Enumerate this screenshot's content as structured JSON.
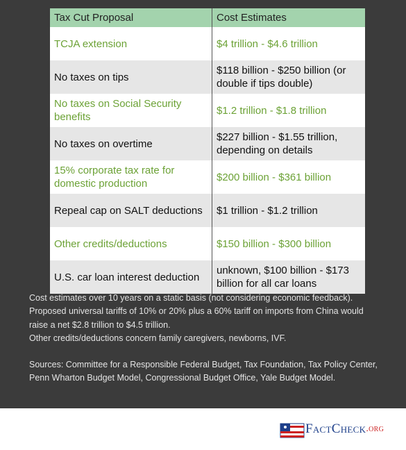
{
  "table": {
    "header": [
      "Tax Cut Proposal",
      "Cost Estimates"
    ],
    "rows": [
      [
        "TCJA extension",
        "$4 trillion - $4.6 trillion"
      ],
      [
        "No taxes on tips",
        "$118 billion - $250 billion (or double if tips double)"
      ],
      [
        "No taxes on Social Security benefits",
        "$1.2 trillion - $1.8 trillion"
      ],
      [
        "No taxes on overtime",
        "$227 billion - $1.55 trillion, depending on details"
      ],
      [
        "15% corporate tax rate for domestic production",
        "$200 billion - $361 billion"
      ],
      [
        "Repeal cap on SALT deductions",
        "$1 trillion - $1.2 trillion"
      ],
      [
        "Other credits/deductions",
        "$150 billion - $300 billion"
      ],
      [
        "U.S. car loan interest deduction",
        "unknown, $100 billion - $173 billion for all car loans"
      ]
    ]
  },
  "notes": [
    "Cost estimates over 10 years on a static basis (not considering economic feedback).",
    "Proposed universal tariffs of 10% or 20% plus a 60% tariff on imports from China would raise a net $2.8 trillion to $4.5 trillion.",
    "Other credits/deductions concern family caregivers, newborns, IVF."
  ],
  "sources": "Sources: Committee for a Responsible Federal Budget, Tax Foundation, Tax Policy Center, Penn Wharton Budget Model, Congressional Budget Office, Yale Budget Model.",
  "logo": {
    "name": "FactCheck",
    "suffix": ".org"
  }
}
